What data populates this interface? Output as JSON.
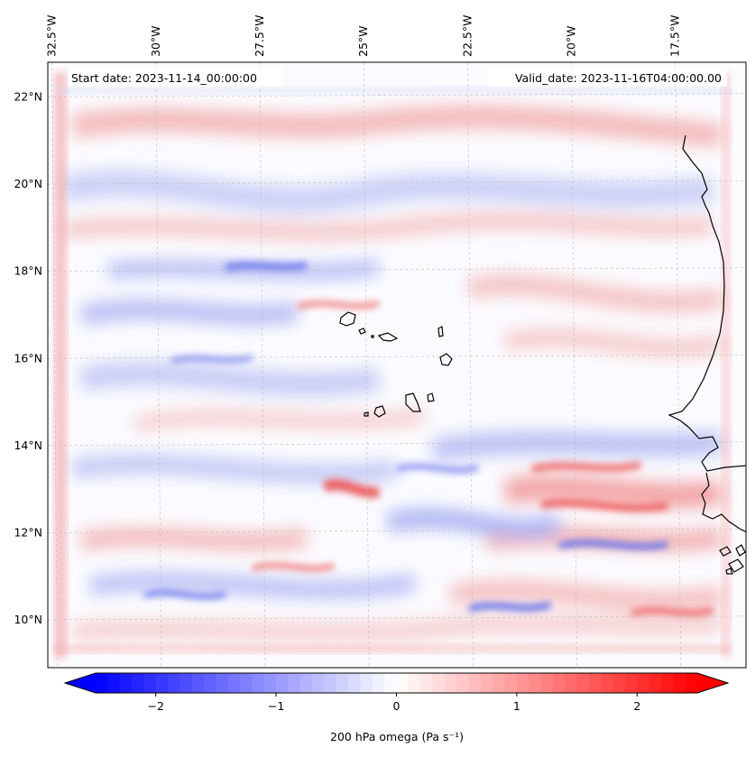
{
  "chart_data": {
    "type": "heatmap",
    "annotations": {
      "start_date": "Start date: 2023-11-14_00:00:00",
      "valid_date": "Valid_date: 2023-11-16T04:00:00.00"
    },
    "lon_ticks": [
      "32.5°W",
      "30°W",
      "27.5°W",
      "25°W",
      "22.5°W",
      "20°W",
      "17.5°W"
    ],
    "lon_values": [
      -32.5,
      -30,
      -27.5,
      -25,
      -22.5,
      -20,
      -17.5
    ],
    "lat_ticks": [
      "22°N",
      "20°N",
      "18°N",
      "16°N",
      "14°N",
      "12°N",
      "10°N"
    ],
    "lat_values": [
      22,
      20,
      18,
      16,
      14,
      12,
      10
    ],
    "extent": {
      "lon": [
        -32.6,
        -15.8
      ],
      "lat": [
        8.9,
        22.8
      ]
    },
    "colorbar": {
      "label": "200 hPa omega (Pa s⁻¹)",
      "ticks": [
        "−2",
        "−1",
        "0",
        "1",
        "2"
      ],
      "tick_values": [
        -2,
        -1,
        0,
        1,
        2
      ],
      "range": [
        -2.5,
        2.5
      ],
      "cmap": "bwr",
      "extend": "both",
      "low_color": "#0000ff",
      "mid_color": "#ffffff",
      "high_color": "#ff0000"
    }
  }
}
